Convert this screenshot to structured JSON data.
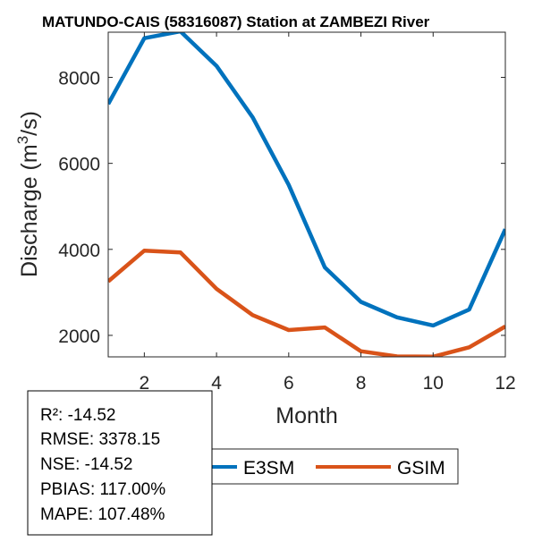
{
  "chart_data": {
    "type": "line",
    "title": "MATUNDO-CAIS (58316087)  Station at  ZAMBEZI  River",
    "xlabel": "Month",
    "ylabel": "Discharge (m",
    "ylabel_sup": "3",
    "ylabel_suffix": "/s)",
    "x": [
      1,
      2,
      3,
      4,
      5,
      6,
      7,
      8,
      9,
      10,
      11,
      12
    ],
    "xlim": [
      1,
      12
    ],
    "ylim": [
      1500,
      9050
    ],
    "xticks": [
      2,
      4,
      6,
      8,
      10,
      12
    ],
    "xtick_labels": [
      "2",
      "4",
      "6",
      "8",
      "10",
      "12"
    ],
    "yticks": [
      2000,
      4000,
      6000,
      8000
    ],
    "ytick_labels": [
      "2000",
      "4000",
      "6000",
      "8000"
    ],
    "grid": false,
    "legend_position": "bottom",
    "series": [
      {
        "name": "E3SM",
        "color": "#0072BD",
        "values": [
          7380,
          8910,
          9070,
          8265,
          7070,
          5500,
          3580,
          2780,
          2420,
          2230,
          2600,
          4470
        ]
      },
      {
        "name": "GSIM",
        "color": "#D95319",
        "values": [
          3256,
          3971,
          3930,
          3083,
          2471,
          2125,
          2185,
          1631,
          1510,
          1505,
          1723,
          2208
        ]
      }
    ]
  },
  "stats": {
    "lines": [
      "R²: -14.52",
      "RMSE: 3378.15",
      "NSE: -14.52",
      "PBIAS: 117.00%",
      "MAPE: 107.48%"
    ]
  }
}
